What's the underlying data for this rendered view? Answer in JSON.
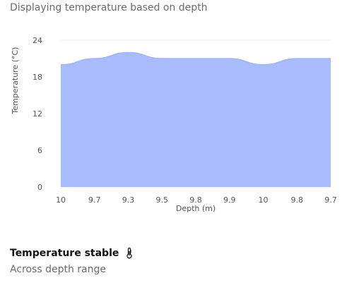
{
  "header": {
    "subtitle": "Displaying temperature based on depth"
  },
  "footer": {
    "title": "Temperature stable",
    "icon": "thermometer-icon",
    "subtitle": "Across depth range"
  },
  "colors": {
    "area_fill": "#a9bbfb",
    "area_stroke": "#a2b5fa",
    "grid": "#ececec",
    "tick_text": "#555555"
  },
  "chart_data": {
    "type": "area",
    "categories": [
      "10",
      "9.7",
      "9.3",
      "9.5",
      "9.8",
      "9.9",
      "10",
      "9.8",
      "9.7"
    ],
    "values": [
      20,
      21,
      22,
      21,
      21,
      21,
      20,
      21,
      21
    ],
    "xlabel": "Depth (m)",
    "ylabel": "Temperature (°C)",
    "ylim": [
      0,
      24
    ],
    "yticks": [
      0,
      6,
      12,
      18,
      24
    ],
    "grid": true,
    "legend": "none"
  }
}
